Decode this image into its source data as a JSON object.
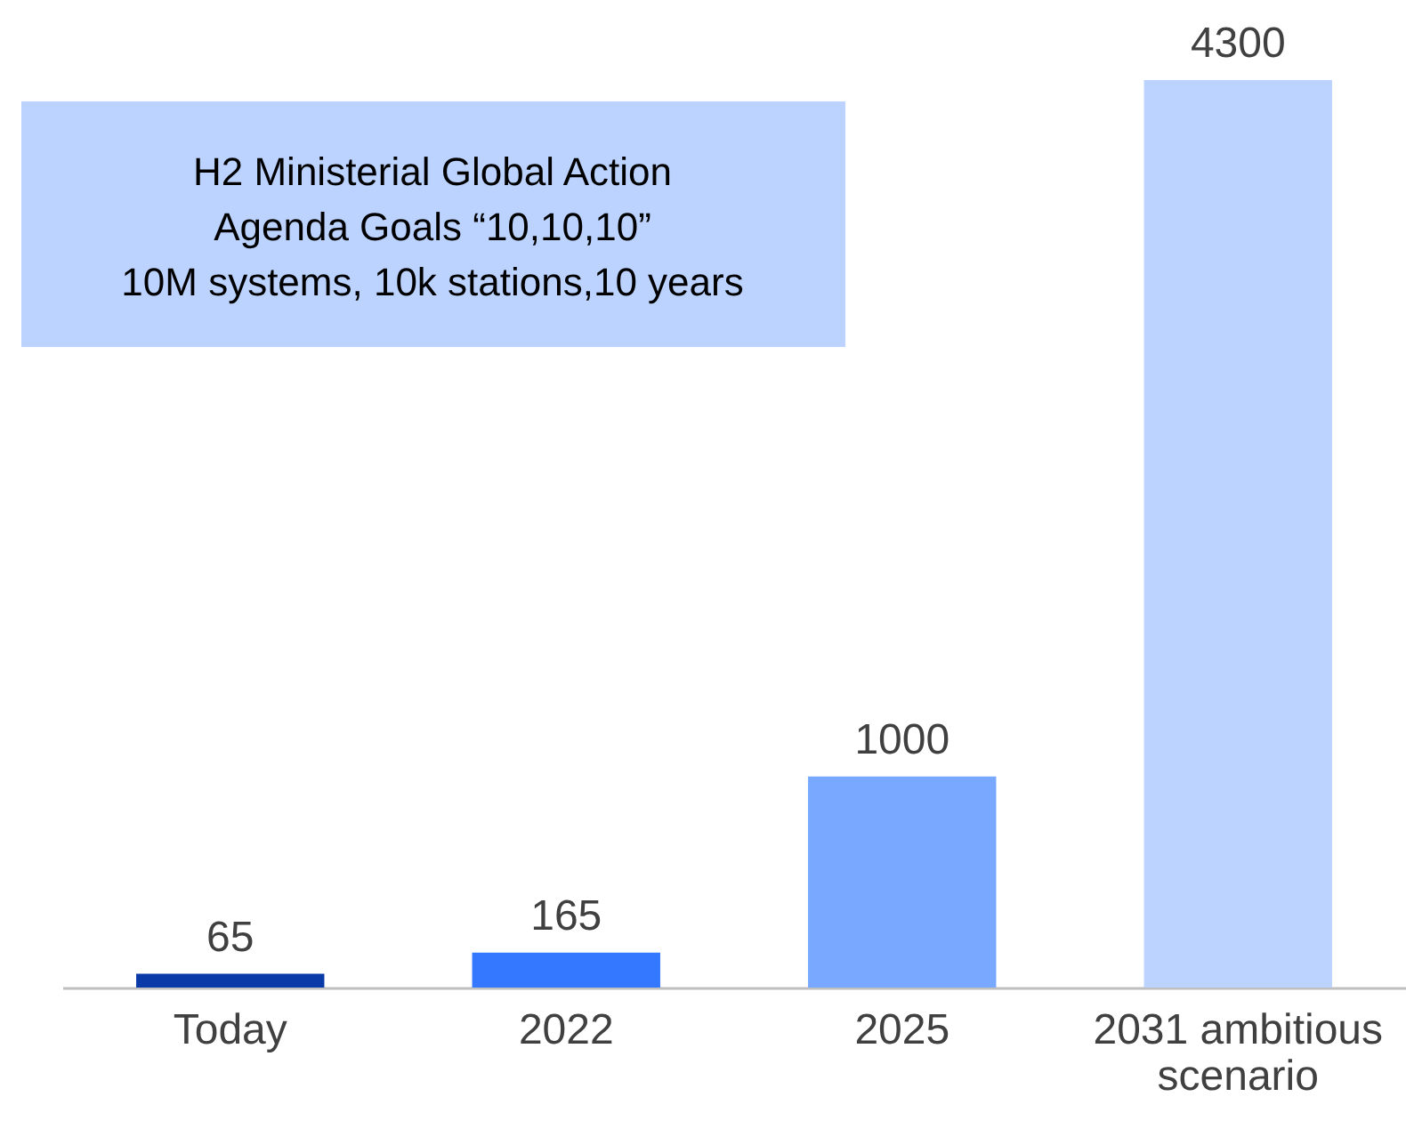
{
  "chart_data": {
    "type": "bar",
    "categories": [
      "Today",
      "2022",
      "2025",
      "2031 ambitious scenario"
    ],
    "values": [
      65,
      165,
      1000,
      4300
    ],
    "colors": [
      "#0a3aa8",
      "#3378ff",
      "#78a8ff",
      "#bcd3ff"
    ],
    "data_labels": true,
    "grid": false,
    "tick_labels": "x",
    "annotations": [
      "H2 Ministerial Global Action\nAgenda Goals “10,10,10”\n10M systems, 10k stations,10 years"
    ]
  }
}
